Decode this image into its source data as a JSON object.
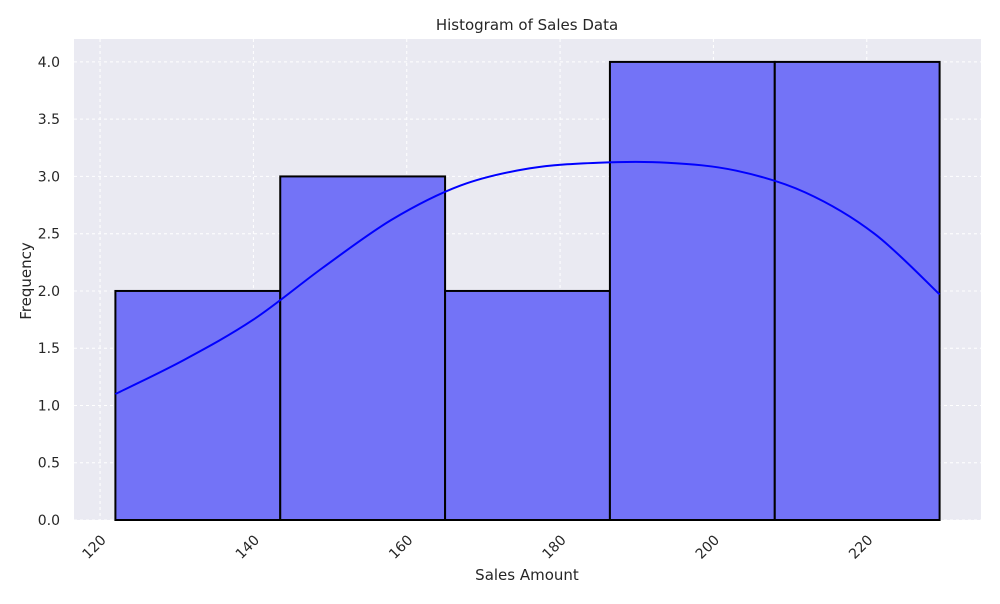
{
  "chart_data": {
    "type": "bar",
    "title": "Histogram of Sales Data",
    "xlabel": "Sales Amount",
    "ylabel": "Frequency",
    "bins": [
      {
        "x0": 122,
        "x1": 143.5,
        "count": 2
      },
      {
        "x0": 143.5,
        "x1": 165,
        "count": 3
      },
      {
        "x0": 165,
        "x1": 186.5,
        "count": 2
      },
      {
        "x0": 186.5,
        "x1": 208,
        "count": 4
      },
      {
        "x0": 208,
        "x1": 229.5,
        "count": 4
      }
    ],
    "kde": {
      "x": [
        122,
        131,
        140,
        149,
        158,
        167,
        176,
        185,
        194,
        203,
        212,
        221,
        229.5
      ],
      "y": [
        1.1,
        1.4,
        1.75,
        2.2,
        2.62,
        2.92,
        3.07,
        3.12,
        3.12,
        3.05,
        2.86,
        2.5,
        1.97
      ]
    },
    "xlim": [
      116.6,
      234.9
    ],
    "ylim": [
      0,
      4.2
    ],
    "xticks": [
      {
        "value": 120,
        "label": "120"
      },
      {
        "value": 140,
        "label": "140"
      },
      {
        "value": 160,
        "label": "160"
      },
      {
        "value": 180,
        "label": "180"
      },
      {
        "value": 200,
        "label": "200"
      },
      {
        "value": 220,
        "label": "220"
      }
    ],
    "yticks": [
      {
        "value": 0,
        "label": "0.0"
      },
      {
        "value": 0.5,
        "label": "0.5"
      },
      {
        "value": 1.0,
        "label": "1.0"
      },
      {
        "value": 1.5,
        "label": "1.5"
      },
      {
        "value": 2.0,
        "label": "2.0"
      },
      {
        "value": 2.5,
        "label": "2.5"
      },
      {
        "value": 3.0,
        "label": "3.0"
      },
      {
        "value": 3.5,
        "label": "3.5"
      },
      {
        "value": 4.0,
        "label": "4.0"
      }
    ],
    "grid": true,
    "colors": {
      "bar_fill": "#7373f7",
      "bar_edge": "#000000",
      "kde_line": "#0000ff",
      "plot_background": "#eaeaf2",
      "grid": "#ffffff"
    }
  }
}
